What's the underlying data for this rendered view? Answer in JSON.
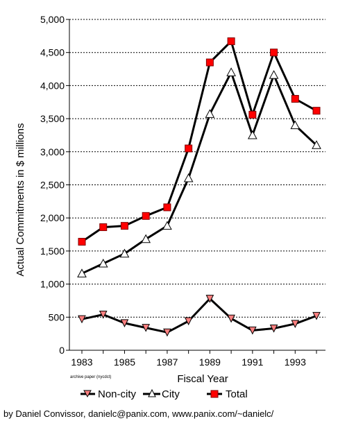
{
  "chart_data": {
    "type": "line",
    "xlabel": "Fiscal Year",
    "ylabel": "Actual Commitments in $ millions",
    "x": [
      1983,
      1984,
      1985,
      1986,
      1987,
      1988,
      1989,
      1990,
      1991,
      1992,
      1993,
      1994
    ],
    "x_tick_labels": [
      "1983",
      "1985",
      "1987",
      "1989",
      "1991",
      "1993"
    ],
    "xlim": [
      1983,
      1994
    ],
    "ylim": [
      0,
      5000
    ],
    "y_tick_labels": [
      "0",
      "500",
      "1,000",
      "1,500",
      "2,000",
      "2,500",
      "3,000",
      "3,500",
      "4,000",
      "4,500",
      "5,000"
    ],
    "grid": "horizontal dotted",
    "series": [
      {
        "name": "Non-city",
        "marker": "down-triangle",
        "marker_fill": "#ff8080",
        "values": [
          470,
          540,
          410,
          340,
          270,
          440,
          780,
          480,
          300,
          330,
          400,
          520
        ]
      },
      {
        "name": "City",
        "marker": "up-triangle",
        "marker_fill": "#ffffff",
        "values": [
          1160,
          1310,
          1460,
          1680,
          1880,
          2600,
          3570,
          4200,
          3250,
          4160,
          3400,
          3100
        ]
      },
      {
        "name": "Total",
        "marker": "square",
        "marker_fill": "#ff0000",
        "values": [
          1640,
          1860,
          1880,
          2030,
          2160,
          3050,
          4350,
          4670,
          3560,
          4500,
          3800,
          3620
        ]
      }
    ],
    "legend_position": "bottom"
  },
  "notes": {
    "source_small": "archive paper (nycdct)",
    "credit": "by Daniel Convissor, danielc@panix.com, www.panix.com/~danielc/"
  },
  "colors": {
    "line": "#000000",
    "total_marker": "#ff0000",
    "noncity_marker": "#ff8080",
    "city_marker": "#ffffff"
  }
}
